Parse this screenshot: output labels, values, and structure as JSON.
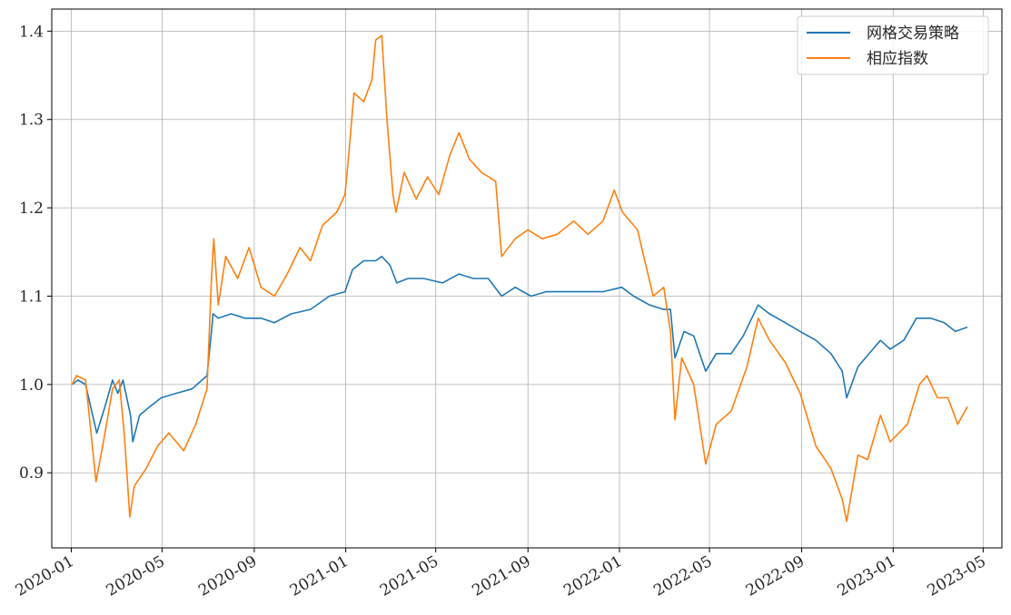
{
  "chart_data": {
    "type": "line",
    "title": "",
    "xlabel": "",
    "ylabel": "",
    "xlim": [
      "2019-12-06",
      "2023-05-26"
    ],
    "ylim": [
      0.815,
      1.425
    ],
    "grid": true,
    "legend_position": "top-right",
    "x_ticks": [
      "2020-01",
      "2020-05",
      "2020-09",
      "2021-01",
      "2021-05",
      "2021-09",
      "2022-01",
      "2022-05",
      "2022-09",
      "2023-01",
      "2023-05"
    ],
    "y_ticks": [
      0.9,
      1.0,
      1.1,
      1.2,
      1.3,
      1.4
    ],
    "y_tick_labels": [
      "0.9",
      "1.0",
      "1.1",
      "1.2",
      "1.3",
      "1.4"
    ],
    "series": [
      {
        "name": "网格交易策略",
        "color": "#1f77b4",
        "points": [
          [
            "2020-01-02",
            1.0
          ],
          [
            "2020-01-10",
            1.005
          ],
          [
            "2020-01-20",
            1.0
          ],
          [
            "2020-02-04",
            0.945
          ],
          [
            "2020-02-15",
            0.975
          ],
          [
            "2020-02-25",
            1.005
          ],
          [
            "2020-03-03",
            0.99
          ],
          [
            "2020-03-10",
            1.005
          ],
          [
            "2020-03-20",
            0.965
          ],
          [
            "2020-03-23",
            0.935
          ],
          [
            "2020-04-01",
            0.965
          ],
          [
            "2020-04-15",
            0.975
          ],
          [
            "2020-04-30",
            0.985
          ],
          [
            "2020-05-20",
            0.99
          ],
          [
            "2020-06-10",
            0.995
          ],
          [
            "2020-06-30",
            1.01
          ],
          [
            "2020-07-06",
            1.06
          ],
          [
            "2020-07-08",
            1.08
          ],
          [
            "2020-07-15",
            1.075
          ],
          [
            "2020-08-01",
            1.08
          ],
          [
            "2020-08-20",
            1.075
          ],
          [
            "2020-09-10",
            1.075
          ],
          [
            "2020-09-28",
            1.07
          ],
          [
            "2020-10-20",
            1.08
          ],
          [
            "2020-11-15",
            1.085
          ],
          [
            "2020-12-10",
            1.1
          ],
          [
            "2020-12-31",
            1.105
          ],
          [
            "2021-01-10",
            1.13
          ],
          [
            "2021-01-25",
            1.14
          ],
          [
            "2021-02-10",
            1.14
          ],
          [
            "2021-02-18",
            1.145
          ],
          [
            "2021-03-01",
            1.135
          ],
          [
            "2021-03-10",
            1.115
          ],
          [
            "2021-03-25",
            1.12
          ],
          [
            "2021-04-15",
            1.12
          ],
          [
            "2021-05-10",
            1.115
          ],
          [
            "2021-06-01",
            1.125
          ],
          [
            "2021-06-20",
            1.12
          ],
          [
            "2021-07-10",
            1.12
          ],
          [
            "2021-07-28",
            1.1
          ],
          [
            "2021-08-15",
            1.11
          ],
          [
            "2021-09-05",
            1.1
          ],
          [
            "2021-09-25",
            1.105
          ],
          [
            "2021-10-20",
            1.105
          ],
          [
            "2021-11-15",
            1.105
          ],
          [
            "2021-12-10",
            1.105
          ],
          [
            "2022-01-04",
            1.11
          ],
          [
            "2022-01-20",
            1.1
          ],
          [
            "2022-02-10",
            1.09
          ],
          [
            "2022-03-01",
            1.085
          ],
          [
            "2022-03-10",
            1.085
          ],
          [
            "2022-03-16",
            1.03
          ],
          [
            "2022-03-28",
            1.06
          ],
          [
            "2022-04-10",
            1.055
          ],
          [
            "2022-04-26",
            1.015
          ],
          [
            "2022-05-10",
            1.035
          ],
          [
            "2022-05-30",
            1.035
          ],
          [
            "2022-06-15",
            1.055
          ],
          [
            "2022-07-05",
            1.09
          ],
          [
            "2022-07-20",
            1.08
          ],
          [
            "2022-08-10",
            1.07
          ],
          [
            "2022-08-30",
            1.06
          ],
          [
            "2022-09-20",
            1.05
          ],
          [
            "2022-10-10",
            1.035
          ],
          [
            "2022-10-25",
            1.015
          ],
          [
            "2022-10-31",
            0.985
          ],
          [
            "2022-11-15",
            1.02
          ],
          [
            "2022-11-25",
            1.03
          ],
          [
            "2022-12-15",
            1.05
          ],
          [
            "2022-12-28",
            1.04
          ],
          [
            "2023-01-15",
            1.05
          ],
          [
            "2023-02-01",
            1.075
          ],
          [
            "2023-02-20",
            1.075
          ],
          [
            "2023-03-10",
            1.07
          ],
          [
            "2023-03-25",
            1.06
          ],
          [
            "2023-04-10",
            1.065
          ]
        ]
      },
      {
        "name": "相应指数",
        "color": "#ff7f0e",
        "points": [
          [
            "2020-01-02",
            1.0
          ],
          [
            "2020-01-08",
            1.01
          ],
          [
            "2020-01-20",
            1.005
          ],
          [
            "2020-02-03",
            0.89
          ],
          [
            "2020-02-15",
            0.945
          ],
          [
            "2020-02-25",
            0.995
          ],
          [
            "2020-03-05",
            1.005
          ],
          [
            "2020-03-12",
            0.94
          ],
          [
            "2020-03-19",
            0.85
          ],
          [
            "2020-03-25",
            0.885
          ],
          [
            "2020-04-10",
            0.905
          ],
          [
            "2020-04-25",
            0.93
          ],
          [
            "2020-05-10",
            0.945
          ],
          [
            "2020-05-30",
            0.925
          ],
          [
            "2020-06-15",
            0.955
          ],
          [
            "2020-06-30",
            0.995
          ],
          [
            "2020-07-06",
            1.12
          ],
          [
            "2020-07-09",
            1.165
          ],
          [
            "2020-07-15",
            1.09
          ],
          [
            "2020-07-25",
            1.145
          ],
          [
            "2020-08-10",
            1.12
          ],
          [
            "2020-08-25",
            1.155
          ],
          [
            "2020-09-10",
            1.11
          ],
          [
            "2020-09-28",
            1.1
          ],
          [
            "2020-10-15",
            1.125
          ],
          [
            "2020-11-01",
            1.155
          ],
          [
            "2020-11-15",
            1.14
          ],
          [
            "2020-12-01",
            1.18
          ],
          [
            "2020-12-20",
            1.195
          ],
          [
            "2020-12-31",
            1.215
          ],
          [
            "2021-01-05",
            1.26
          ],
          [
            "2021-01-12",
            1.33
          ],
          [
            "2021-01-25",
            1.32
          ],
          [
            "2021-02-05",
            1.345
          ],
          [
            "2021-02-10",
            1.39
          ],
          [
            "2021-02-18",
            1.395
          ],
          [
            "2021-02-25",
            1.3
          ],
          [
            "2021-03-05",
            1.215
          ],
          [
            "2021-03-09",
            1.195
          ],
          [
            "2021-03-20",
            1.24
          ],
          [
            "2021-04-05",
            1.21
          ],
          [
            "2021-04-20",
            1.235
          ],
          [
            "2021-05-05",
            1.215
          ],
          [
            "2021-05-20",
            1.26
          ],
          [
            "2021-06-01",
            1.285
          ],
          [
            "2021-06-15",
            1.255
          ],
          [
            "2021-07-01",
            1.24
          ],
          [
            "2021-07-20",
            1.23
          ],
          [
            "2021-07-28",
            1.145
          ],
          [
            "2021-08-15",
            1.165
          ],
          [
            "2021-09-01",
            1.175
          ],
          [
            "2021-09-20",
            1.165
          ],
          [
            "2021-10-10",
            1.17
          ],
          [
            "2021-11-01",
            1.185
          ],
          [
            "2021-11-20",
            1.17
          ],
          [
            "2021-12-10",
            1.185
          ],
          [
            "2021-12-25",
            1.22
          ],
          [
            "2022-01-05",
            1.195
          ],
          [
            "2022-01-25",
            1.175
          ],
          [
            "2022-02-15",
            1.1
          ],
          [
            "2022-03-01",
            1.11
          ],
          [
            "2022-03-10",
            1.06
          ],
          [
            "2022-03-16",
            0.96
          ],
          [
            "2022-03-25",
            1.03
          ],
          [
            "2022-04-10",
            1.0
          ],
          [
            "2022-04-26",
            0.91
          ],
          [
            "2022-05-10",
            0.955
          ],
          [
            "2022-05-30",
            0.97
          ],
          [
            "2022-06-20",
            1.02
          ],
          [
            "2022-07-05",
            1.075
          ],
          [
            "2022-07-20",
            1.05
          ],
          [
            "2022-08-10",
            1.025
          ],
          [
            "2022-08-30",
            0.99
          ],
          [
            "2022-09-20",
            0.93
          ],
          [
            "2022-10-10",
            0.905
          ],
          [
            "2022-10-25",
            0.87
          ],
          [
            "2022-10-31",
            0.845
          ],
          [
            "2022-11-15",
            0.92
          ],
          [
            "2022-11-28",
            0.915
          ],
          [
            "2022-12-15",
            0.965
          ],
          [
            "2022-12-28",
            0.935
          ],
          [
            "2023-01-20",
            0.955
          ],
          [
            "2023-02-05",
            1.0
          ],
          [
            "2023-02-15",
            1.01
          ],
          [
            "2023-03-01",
            0.985
          ],
          [
            "2023-03-15",
            0.985
          ],
          [
            "2023-03-28",
            0.955
          ],
          [
            "2023-04-10",
            0.975
          ]
        ]
      }
    ]
  }
}
